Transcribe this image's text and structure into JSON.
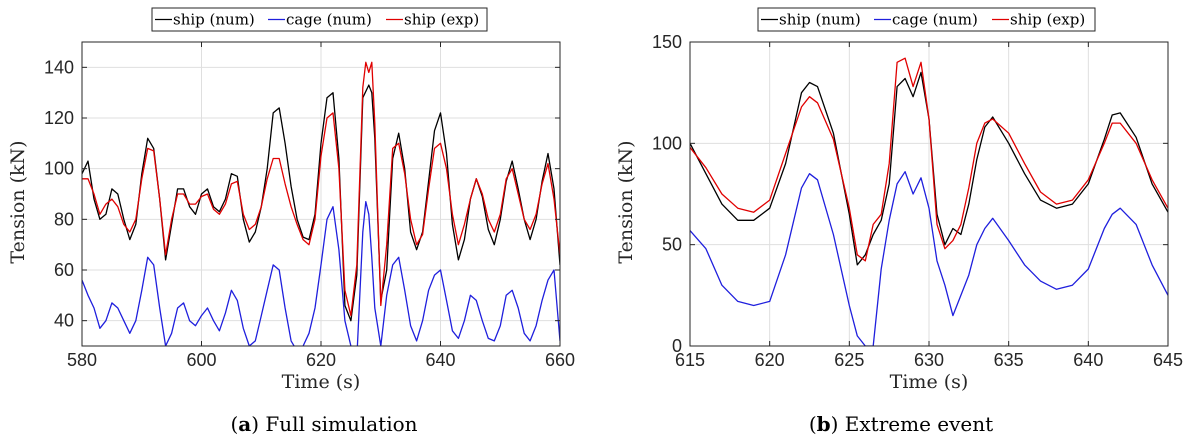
{
  "chart_data": [
    {
      "type": "line",
      "caption_letter": "a",
      "caption_text": "Full simulation",
      "xlabel": "Time (s)",
      "ylabel": "Tension (kN)",
      "xlim": [
        580,
        660
      ],
      "ylim": [
        30,
        150
      ],
      "xticks": [
        580,
        600,
        620,
        640,
        660
      ],
      "yticks": [
        40,
        60,
        80,
        100,
        120,
        140
      ],
      "grid": true,
      "legend_position": "top",
      "series": [
        {
          "name": "ship (num)",
          "color": "#000000",
          "x": [
            580,
            581,
            582,
            583,
            584,
            585,
            586,
            587,
            588,
            589,
            590,
            591,
            592,
            593,
            594,
            595,
            596,
            597,
            598,
            599,
            600,
            601,
            602,
            603,
            604,
            605,
            606,
            607,
            608,
            609,
            610,
            611,
            612,
            613,
            614,
            615,
            616,
            617,
            618,
            619,
            620,
            621,
            622,
            623,
            624,
            625,
            626,
            627,
            628,
            628.5,
            629,
            630,
            631,
            632,
            633,
            634,
            635,
            636,
            637,
            638,
            639,
            640,
            641,
            642,
            643,
            644,
            645,
            646,
            647,
            648,
            649,
            650,
            651,
            652,
            653,
            654,
            655,
            656,
            657,
            658,
            659,
            660
          ],
          "y": [
            98,
            103,
            88,
            80,
            82,
            92,
            90,
            80,
            72,
            78,
            98,
            112,
            108,
            88,
            64,
            78,
            92,
            92,
            85,
            82,
            90,
            92,
            85,
            83,
            88,
            98,
            97,
            80,
            71,
            75,
            85,
            100,
            122,
            124,
            110,
            93,
            80,
            73,
            72,
            82,
            110,
            128,
            130,
            104,
            46,
            40,
            58,
            128,
            133,
            130,
            112,
            48,
            60,
            104,
            114,
            100,
            75,
            68,
            75,
            95,
            115,
            122,
            106,
            78,
            64,
            72,
            88,
            96,
            89,
            76,
            70,
            80,
            95,
            103,
            92,
            80,
            72,
            80,
            95,
            106,
            92,
            62
          ]
        },
        {
          "name": "cage (num)",
          "color": "#1f1fdd",
          "x": [
            580,
            581,
            582,
            583,
            584,
            585,
            586,
            587,
            588,
            589,
            590,
            591,
            592,
            593,
            594,
            595,
            596,
            597,
            598,
            599,
            600,
            601,
            602,
            603,
            604,
            605,
            606,
            607,
            608,
            609,
            610,
            611,
            612,
            613,
            614,
            615,
            616,
            617,
            618,
            619,
            620,
            621,
            622,
            623,
            624,
            625,
            626,
            627,
            627.5,
            628,
            628.5,
            629,
            630,
            631,
            632,
            633,
            634,
            635,
            636,
            637,
            638,
            639,
            640,
            641,
            642,
            643,
            644,
            645,
            646,
            647,
            648,
            649,
            650,
            651,
            652,
            653,
            654,
            655,
            656,
            657,
            658,
            659,
            660
          ],
          "y": [
            56,
            50,
            45,
            37,
            40,
            47,
            45,
            40,
            35,
            40,
            52,
            65,
            62,
            45,
            30,
            35,
            45,
            47,
            40,
            38,
            42,
            45,
            40,
            36,
            43,
            52,
            48,
            37,
            30,
            32,
            42,
            52,
            62,
            60,
            45,
            32,
            28,
            30,
            35,
            45,
            62,
            80,
            85,
            68,
            40,
            30,
            25,
            75,
            87,
            82,
            65,
            45,
            30,
            50,
            62,
            65,
            52,
            38,
            32,
            40,
            52,
            58,
            60,
            48,
            36,
            33,
            40,
            50,
            48,
            40,
            33,
            32,
            38,
            50,
            52,
            45,
            35,
            32,
            38,
            48,
            56,
            60,
            32
          ]
        },
        {
          "name": "ship (exp)",
          "color": "#e00000",
          "x": [
            580,
            581,
            582,
            583,
            584,
            585,
            586,
            587,
            588,
            589,
            590,
            591,
            592,
            593,
            594,
            595,
            596,
            597,
            598,
            599,
            600,
            601,
            602,
            603,
            604,
            605,
            606,
            607,
            608,
            609,
            610,
            611,
            612,
            613,
            614,
            615,
            616,
            617,
            618,
            619,
            620,
            621,
            622,
            623,
            624,
            625,
            626,
            627,
            627.5,
            628,
            628.5,
            629,
            630,
            631,
            632,
            633,
            634,
            635,
            636,
            637,
            638,
            639,
            640,
            641,
            642,
            643,
            644,
            645,
            646,
            647,
            648,
            649,
            650,
            651,
            652,
            653,
            654,
            655,
            656,
            657,
            658,
            659,
            660
          ],
          "y": [
            96,
            96,
            90,
            82,
            86,
            88,
            85,
            78,
            75,
            80,
            96,
            108,
            107,
            88,
            66,
            80,
            90,
            90,
            86,
            86,
            89,
            90,
            84,
            82,
            86,
            94,
            95,
            82,
            76,
            78,
            85,
            96,
            104,
            104,
            94,
            85,
            78,
            72,
            70,
            80,
            105,
            120,
            122,
            100,
            52,
            42,
            62,
            132,
            142,
            138,
            142,
            118,
            46,
            70,
            108,
            110,
            98,
            80,
            70,
            74,
            92,
            108,
            110,
            100,
            82,
            70,
            78,
            88,
            96,
            90,
            80,
            75,
            82,
            96,
            100,
            90,
            80,
            76,
            82,
            94,
            102,
            88,
            66
          ]
        }
      ]
    },
    {
      "type": "line",
      "caption_letter": "b",
      "caption_text": "Extreme event",
      "xlabel": "Time (s)",
      "ylabel": "Tension (kN)",
      "xlim": [
        615,
        645
      ],
      "ylim": [
        0,
        150
      ],
      "xticks": [
        615,
        620,
        625,
        630,
        635,
        640,
        645
      ],
      "yticks": [
        0,
        50,
        100,
        150
      ],
      "grid": true,
      "legend_position": "top",
      "series": [
        {
          "name": "ship (num)",
          "color": "#000000",
          "x": [
            615,
            616,
            617,
            618,
            619,
            620,
            621,
            622,
            622.5,
            623,
            624,
            625,
            625.5,
            626,
            626.5,
            627,
            627.5,
            628,
            628.5,
            629,
            629.5,
            630,
            630.5,
            631,
            631.5,
            632,
            632.5,
            633,
            633.5,
            634,
            635,
            636,
            637,
            638,
            639,
            640,
            641,
            641.5,
            642,
            643,
            644,
            645
          ],
          "y": [
            100,
            85,
            70,
            62,
            62,
            68,
            90,
            125,
            130,
            128,
            105,
            65,
            40,
            45,
            55,
            62,
            80,
            128,
            132,
            123,
            135,
            112,
            65,
            50,
            58,
            55,
            70,
            92,
            108,
            113,
            100,
            85,
            72,
            68,
            70,
            80,
            102,
            114,
            115,
            103,
            80,
            66
          ],
          "y_note": ""
        },
        {
          "name": "cage (num)",
          "color": "#1f1fdd",
          "x": [
            615,
            616,
            617,
            618,
            619,
            620,
            621,
            622,
            622.5,
            623,
            624,
            625,
            625.5,
            626,
            626.5,
            627,
            627.5,
            628,
            628.5,
            629,
            629.5,
            630,
            630.5,
            631,
            631.5,
            632,
            632.5,
            633,
            633.5,
            634,
            635,
            636,
            637,
            638,
            639,
            640,
            641,
            641.5,
            642,
            643,
            644,
            645
          ],
          "y": [
            57,
            48,
            30,
            22,
            20,
            22,
            45,
            78,
            85,
            82,
            55,
            20,
            5,
            0,
            0,
            38,
            62,
            80,
            86,
            75,
            83,
            68,
            42,
            30,
            15,
            25,
            35,
            50,
            58,
            63,
            52,
            40,
            32,
            28,
            30,
            38,
            58,
            65,
            68,
            60,
            40,
            25
          ]
        },
        {
          "name": "ship (exp)",
          "color": "#e00000",
          "x": [
            615,
            616,
            617,
            618,
            619,
            620,
            621,
            622,
            622.5,
            623,
            624,
            625,
            625.5,
            626,
            626.5,
            627,
            627.5,
            628,
            628.5,
            629,
            629.5,
            630,
            630.5,
            631,
            631.5,
            632,
            632.5,
            633,
            633.5,
            634,
            635,
            636,
            637,
            638,
            639,
            640,
            641,
            641.5,
            642,
            643,
            644,
            645
          ],
          "y": [
            98,
            88,
            75,
            68,
            66,
            72,
            95,
            118,
            123,
            120,
            102,
            68,
            45,
            42,
            60,
            65,
            90,
            140,
            142,
            128,
            140,
            112,
            60,
            48,
            52,
            60,
            78,
            100,
            110,
            112,
            105,
            90,
            76,
            70,
            72,
            82,
            100,
            110,
            110,
            100,
            82,
            68
          ]
        }
      ]
    }
  ]
}
